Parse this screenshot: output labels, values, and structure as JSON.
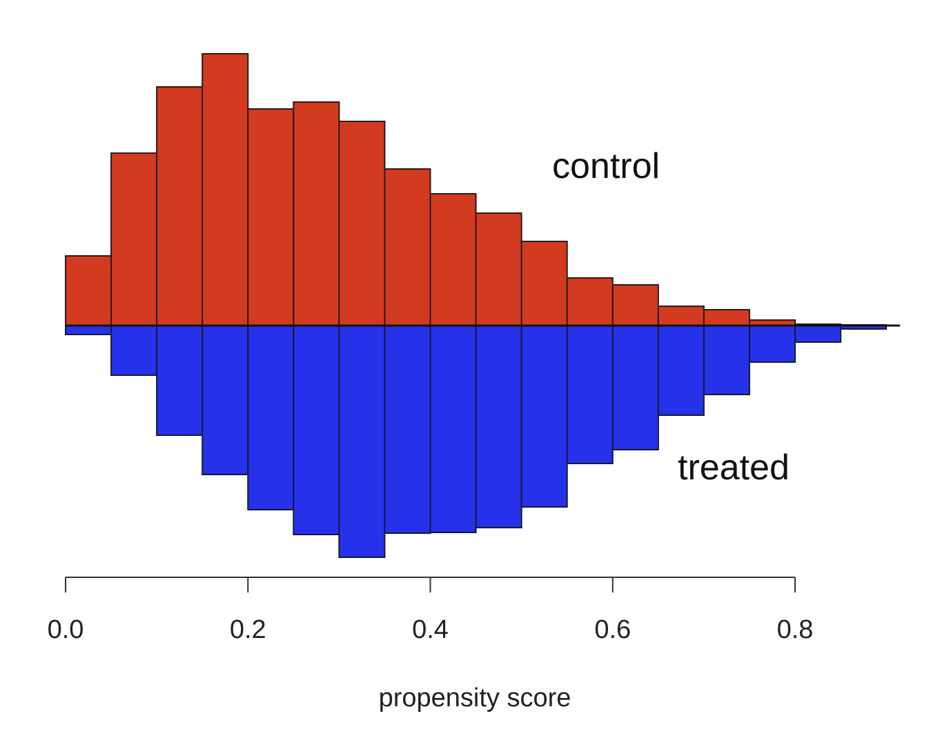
{
  "chart_data": {
    "type": "bar",
    "subtype": "mirrored-histogram",
    "xlabel": "propensity score",
    "xlim": [
      0.0,
      0.9
    ],
    "xticks": [
      0.0,
      0.2,
      0.4,
      0.6,
      0.8
    ],
    "xtick_labels": [
      "0.0",
      "0.2",
      "0.4",
      "0.6",
      "0.8"
    ],
    "bin_width": 0.05,
    "bin_starts": [
      0.0,
      0.05,
      0.1,
      0.15,
      0.2,
      0.25,
      0.3,
      0.35,
      0.4,
      0.45,
      0.5,
      0.55,
      0.6,
      0.65,
      0.7,
      0.75,
      0.8,
      0.85
    ],
    "series": [
      {
        "name": "control",
        "direction": "up",
        "color": "#d23b20",
        "values": [
          101,
          250,
          346,
          394,
          314,
          324,
          296,
          227,
          191,
          163,
          122,
          69,
          59,
          28,
          23,
          8,
          2,
          1
        ]
      },
      {
        "name": "treated",
        "direction": "down",
        "color": "#2632ea",
        "values": [
          13,
          72,
          159,
          216,
          267,
          303,
          336,
          301,
          300,
          293,
          263,
          200,
          180,
          130,
          100,
          53,
          24,
          5
        ]
      }
    ],
    "annotations": [
      "control",
      "treated"
    ],
    "grid": false
  }
}
